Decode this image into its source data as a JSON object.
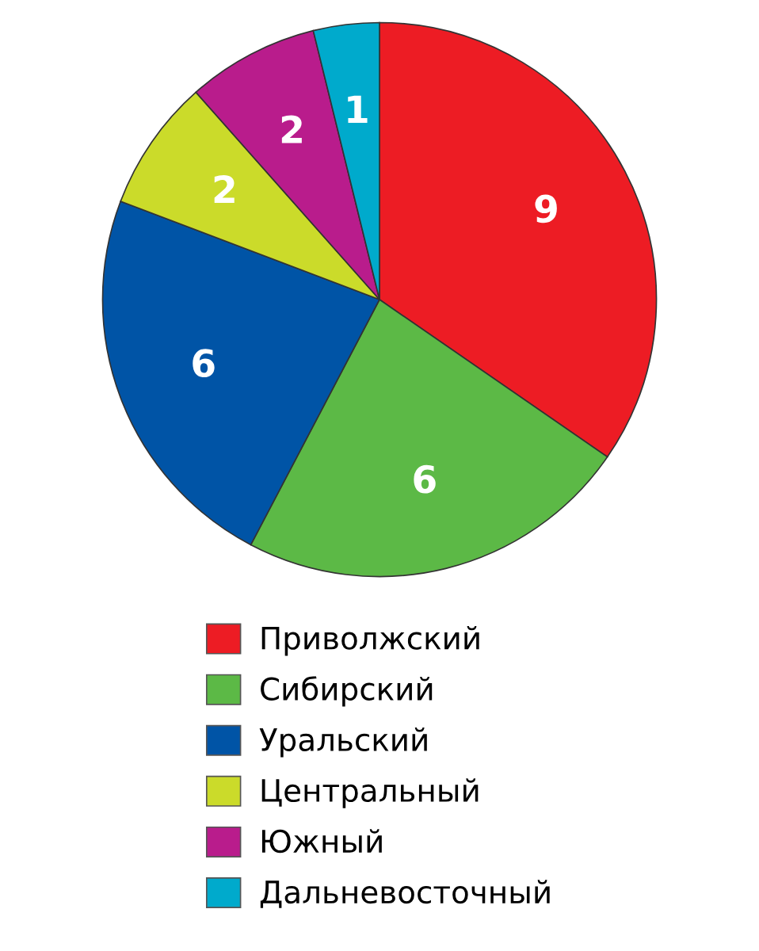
{
  "chart_data": {
    "type": "pie",
    "categories": [
      "Приволжский",
      "Сибирский",
      "Уральский",
      "Центральный",
      "Южный",
      "Дальневосточный"
    ],
    "values": [
      9,
      6,
      6,
      2,
      2,
      1
    ],
    "colors": [
      "#ed1c24",
      "#5cb946",
      "#0054a6",
      "#cbdb2a",
      "#b91c8c",
      "#00aacc"
    ],
    "data_labels": true,
    "legend": "bottom"
  }
}
